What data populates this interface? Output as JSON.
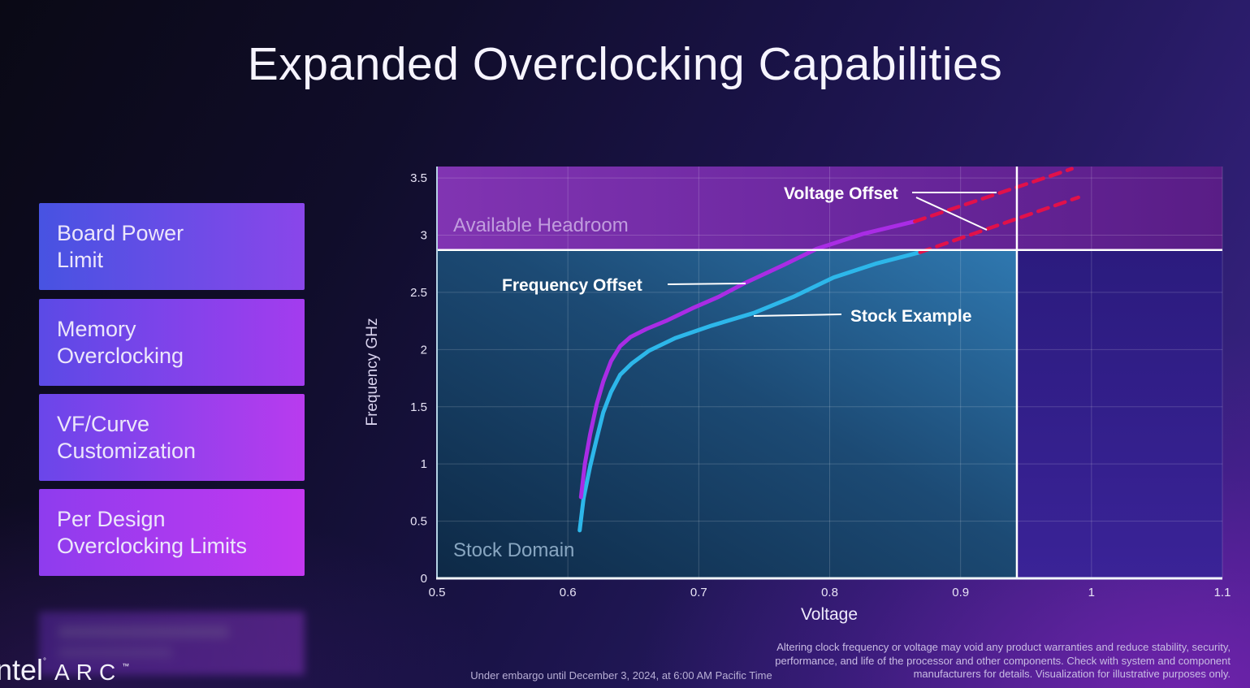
{
  "slide": {
    "title": "Expanded Overclocking Capabilities"
  },
  "sidebar": {
    "cards": [
      {
        "label": "Board Power\nLimit",
        "gradient": [
          "#4753e2",
          "#8a46ea"
        ]
      },
      {
        "label": "Memory\nOverclocking",
        "gradient": [
          "#5b4ae6",
          "#a43cee"
        ]
      },
      {
        "label": "VF/Curve\nCustomization",
        "gradient": [
          "#6a46ea",
          "#b93bee"
        ]
      },
      {
        "label": "Per Design\nOverclocking Limits",
        "gradient": [
          "#8e3cee",
          "#c438f0"
        ]
      }
    ]
  },
  "chart_data": {
    "type": "line",
    "xlabel": "Voltage",
    "ylabel": "Frequency GHz",
    "xlim": [
      0.5,
      1.1
    ],
    "ylim": [
      0,
      3.6
    ],
    "grid": true,
    "x_ticks": [
      {
        "v": 0.5,
        "label": "0.5"
      },
      {
        "v": 0.6,
        "label": "0.6"
      },
      {
        "v": 0.7,
        "label": "0.7"
      },
      {
        "v": 0.8,
        "label": "0.8"
      },
      {
        "v": 0.9,
        "label": "0.9"
      },
      {
        "v": 1.0,
        "label": "1"
      },
      {
        "v": 1.1,
        "label": "1.1"
      }
    ],
    "y_ticks": [
      {
        "v": 0,
        "label": "0"
      },
      {
        "v": 0.5,
        "label": "0.5"
      },
      {
        "v": 1,
        "label": "1"
      },
      {
        "v": 1.5,
        "label": "1.5"
      },
      {
        "v": 2,
        "label": "2"
      },
      {
        "v": 2.5,
        "label": "2.5"
      },
      {
        "v": 3,
        "label": "3"
      },
      {
        "v": 3.5,
        "label": "3.5"
      }
    ],
    "regions": [
      {
        "name": "available-headroom",
        "x": [
          0.5,
          1.1
        ],
        "y": [
          2.87,
          3.6
        ],
        "gradient": "gradHeadroom",
        "label": "Available Headroom"
      },
      {
        "name": "stock-domain",
        "x": [
          0.5,
          0.943
        ],
        "y": [
          0,
          2.87
        ],
        "gradient": "gradStock",
        "label": "Stock Domain"
      },
      {
        "name": "beyond-stock",
        "x": [
          0.943,
          1.1
        ],
        "y": [
          0,
          2.87
        ],
        "gradient": "gradRight",
        "label": ""
      }
    ],
    "markers": {
      "vline": 0.943,
      "hline": 2.87,
      "color": "#ffffff"
    },
    "series": [
      {
        "name": "Stock Example",
        "color": "#2db7ea",
        "width": 5,
        "dash": null,
        "points": [
          [
            0.609,
            0.42
          ],
          [
            0.612,
            0.7
          ],
          [
            0.617,
            0.98
          ],
          [
            0.622,
            1.22
          ],
          [
            0.627,
            1.45
          ],
          [
            0.633,
            1.63
          ],
          [
            0.64,
            1.78
          ],
          [
            0.649,
            1.88
          ],
          [
            0.662,
            1.99
          ],
          [
            0.682,
            2.1
          ],
          [
            0.71,
            2.21
          ],
          [
            0.742,
            2.32
          ],
          [
            0.772,
            2.46
          ],
          [
            0.803,
            2.63
          ],
          [
            0.835,
            2.75
          ],
          [
            0.869,
            2.85
          ]
        ]
      },
      {
        "name": "Frequency Offset",
        "color": "#a92ce5",
        "width": 5,
        "dash": null,
        "points": [
          [
            0.61,
            0.71
          ],
          [
            0.613,
            1.0
          ],
          [
            0.617,
            1.26
          ],
          [
            0.622,
            1.52
          ],
          [
            0.627,
            1.72
          ],
          [
            0.633,
            1.9
          ],
          [
            0.64,
            2.03
          ],
          [
            0.648,
            2.11
          ],
          [
            0.66,
            2.18
          ],
          [
            0.675,
            2.25
          ],
          [
            0.695,
            2.36
          ],
          [
            0.715,
            2.46
          ],
          [
            0.735,
            2.58
          ],
          [
            0.765,
            2.74
          ],
          [
            0.79,
            2.88
          ],
          [
            0.825,
            3.01
          ],
          [
            0.865,
            3.12
          ]
        ]
      },
      {
        "name": "Voltage Offset (from Frequency Offset)",
        "color": "#e1114a",
        "width": 4.5,
        "dash": "13 9",
        "points": [
          [
            0.865,
            3.12
          ],
          [
            0.985,
            3.58
          ]
        ]
      },
      {
        "name": "Voltage Offset (from Stock)",
        "color": "#e1114a",
        "width": 4.5,
        "dash": "13 9",
        "points": [
          [
            0.869,
            2.85
          ],
          [
            0.99,
            3.33
          ]
        ]
      }
    ],
    "annotations": [
      {
        "text": "Voltage Offset"
      },
      {
        "text": "Frequency Offset"
      },
      {
        "text": "Stock Example"
      },
      {
        "text": "Available Headroom"
      },
      {
        "text": "Stock Domain"
      }
    ]
  },
  "footer": {
    "embargo": "Under embargo until December 3, 2024, at 6:00 AM Pacific Time",
    "disclaimer_lines": [
      "Altering clock frequency or voltage may void any product warranties and reduce stability, security,",
      "performance, and life of the processor and other components. Check with system and component",
      "manufacturers for details. Visualization for illustrative purposes only."
    ]
  },
  "logo": {
    "brand": "intel",
    "reg": "°",
    "product": "ARC",
    "tm": "™"
  }
}
